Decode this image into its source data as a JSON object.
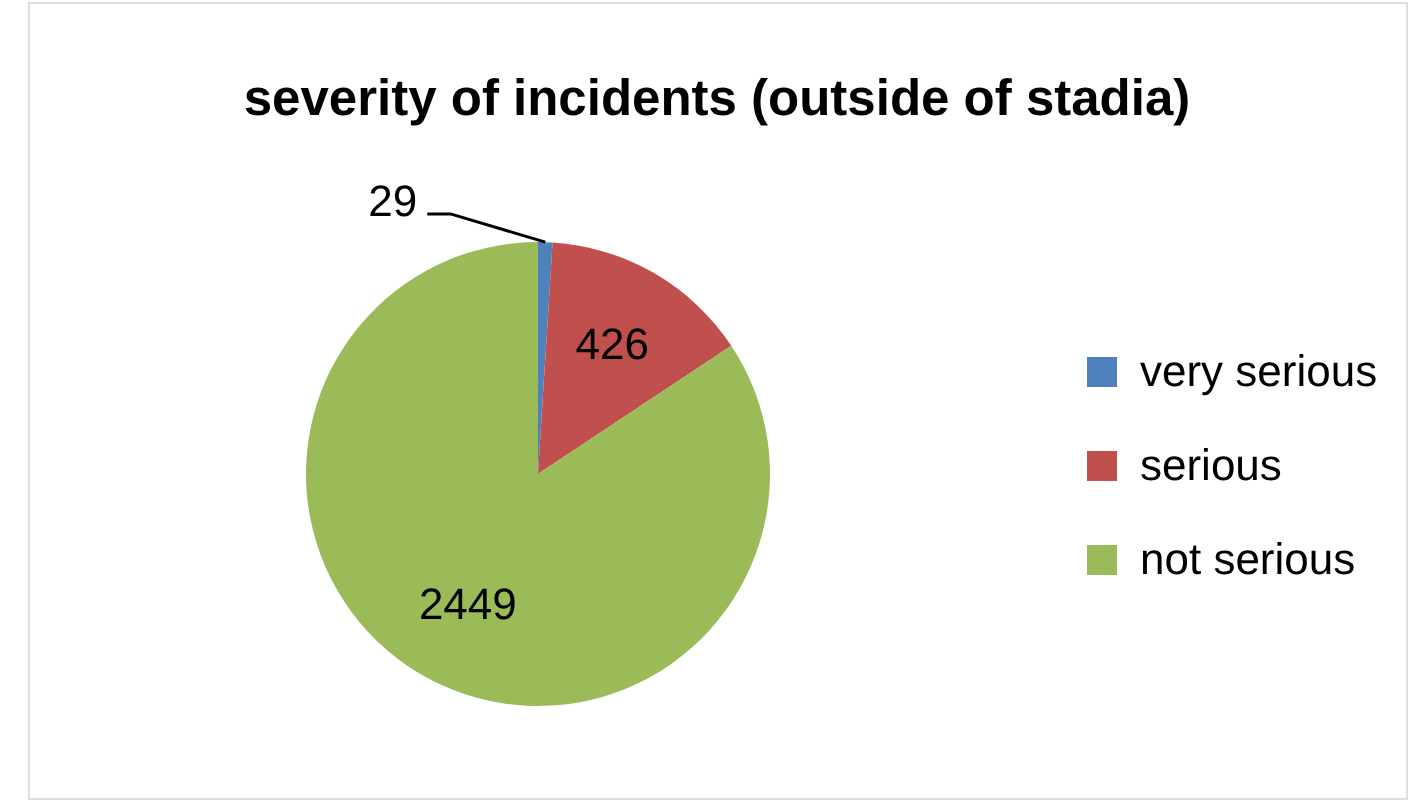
{
  "chart_data": {
    "type": "pie",
    "title": "severity of incidents (outside of stadia)",
    "categories": [
      "very serious",
      "serious",
      "not serious"
    ],
    "values": [
      29,
      426,
      2449
    ],
    "colors": [
      "#4f81bd",
      "#c0504d",
      "#9bbb59"
    ],
    "data_labels": true,
    "legend": "right"
  }
}
